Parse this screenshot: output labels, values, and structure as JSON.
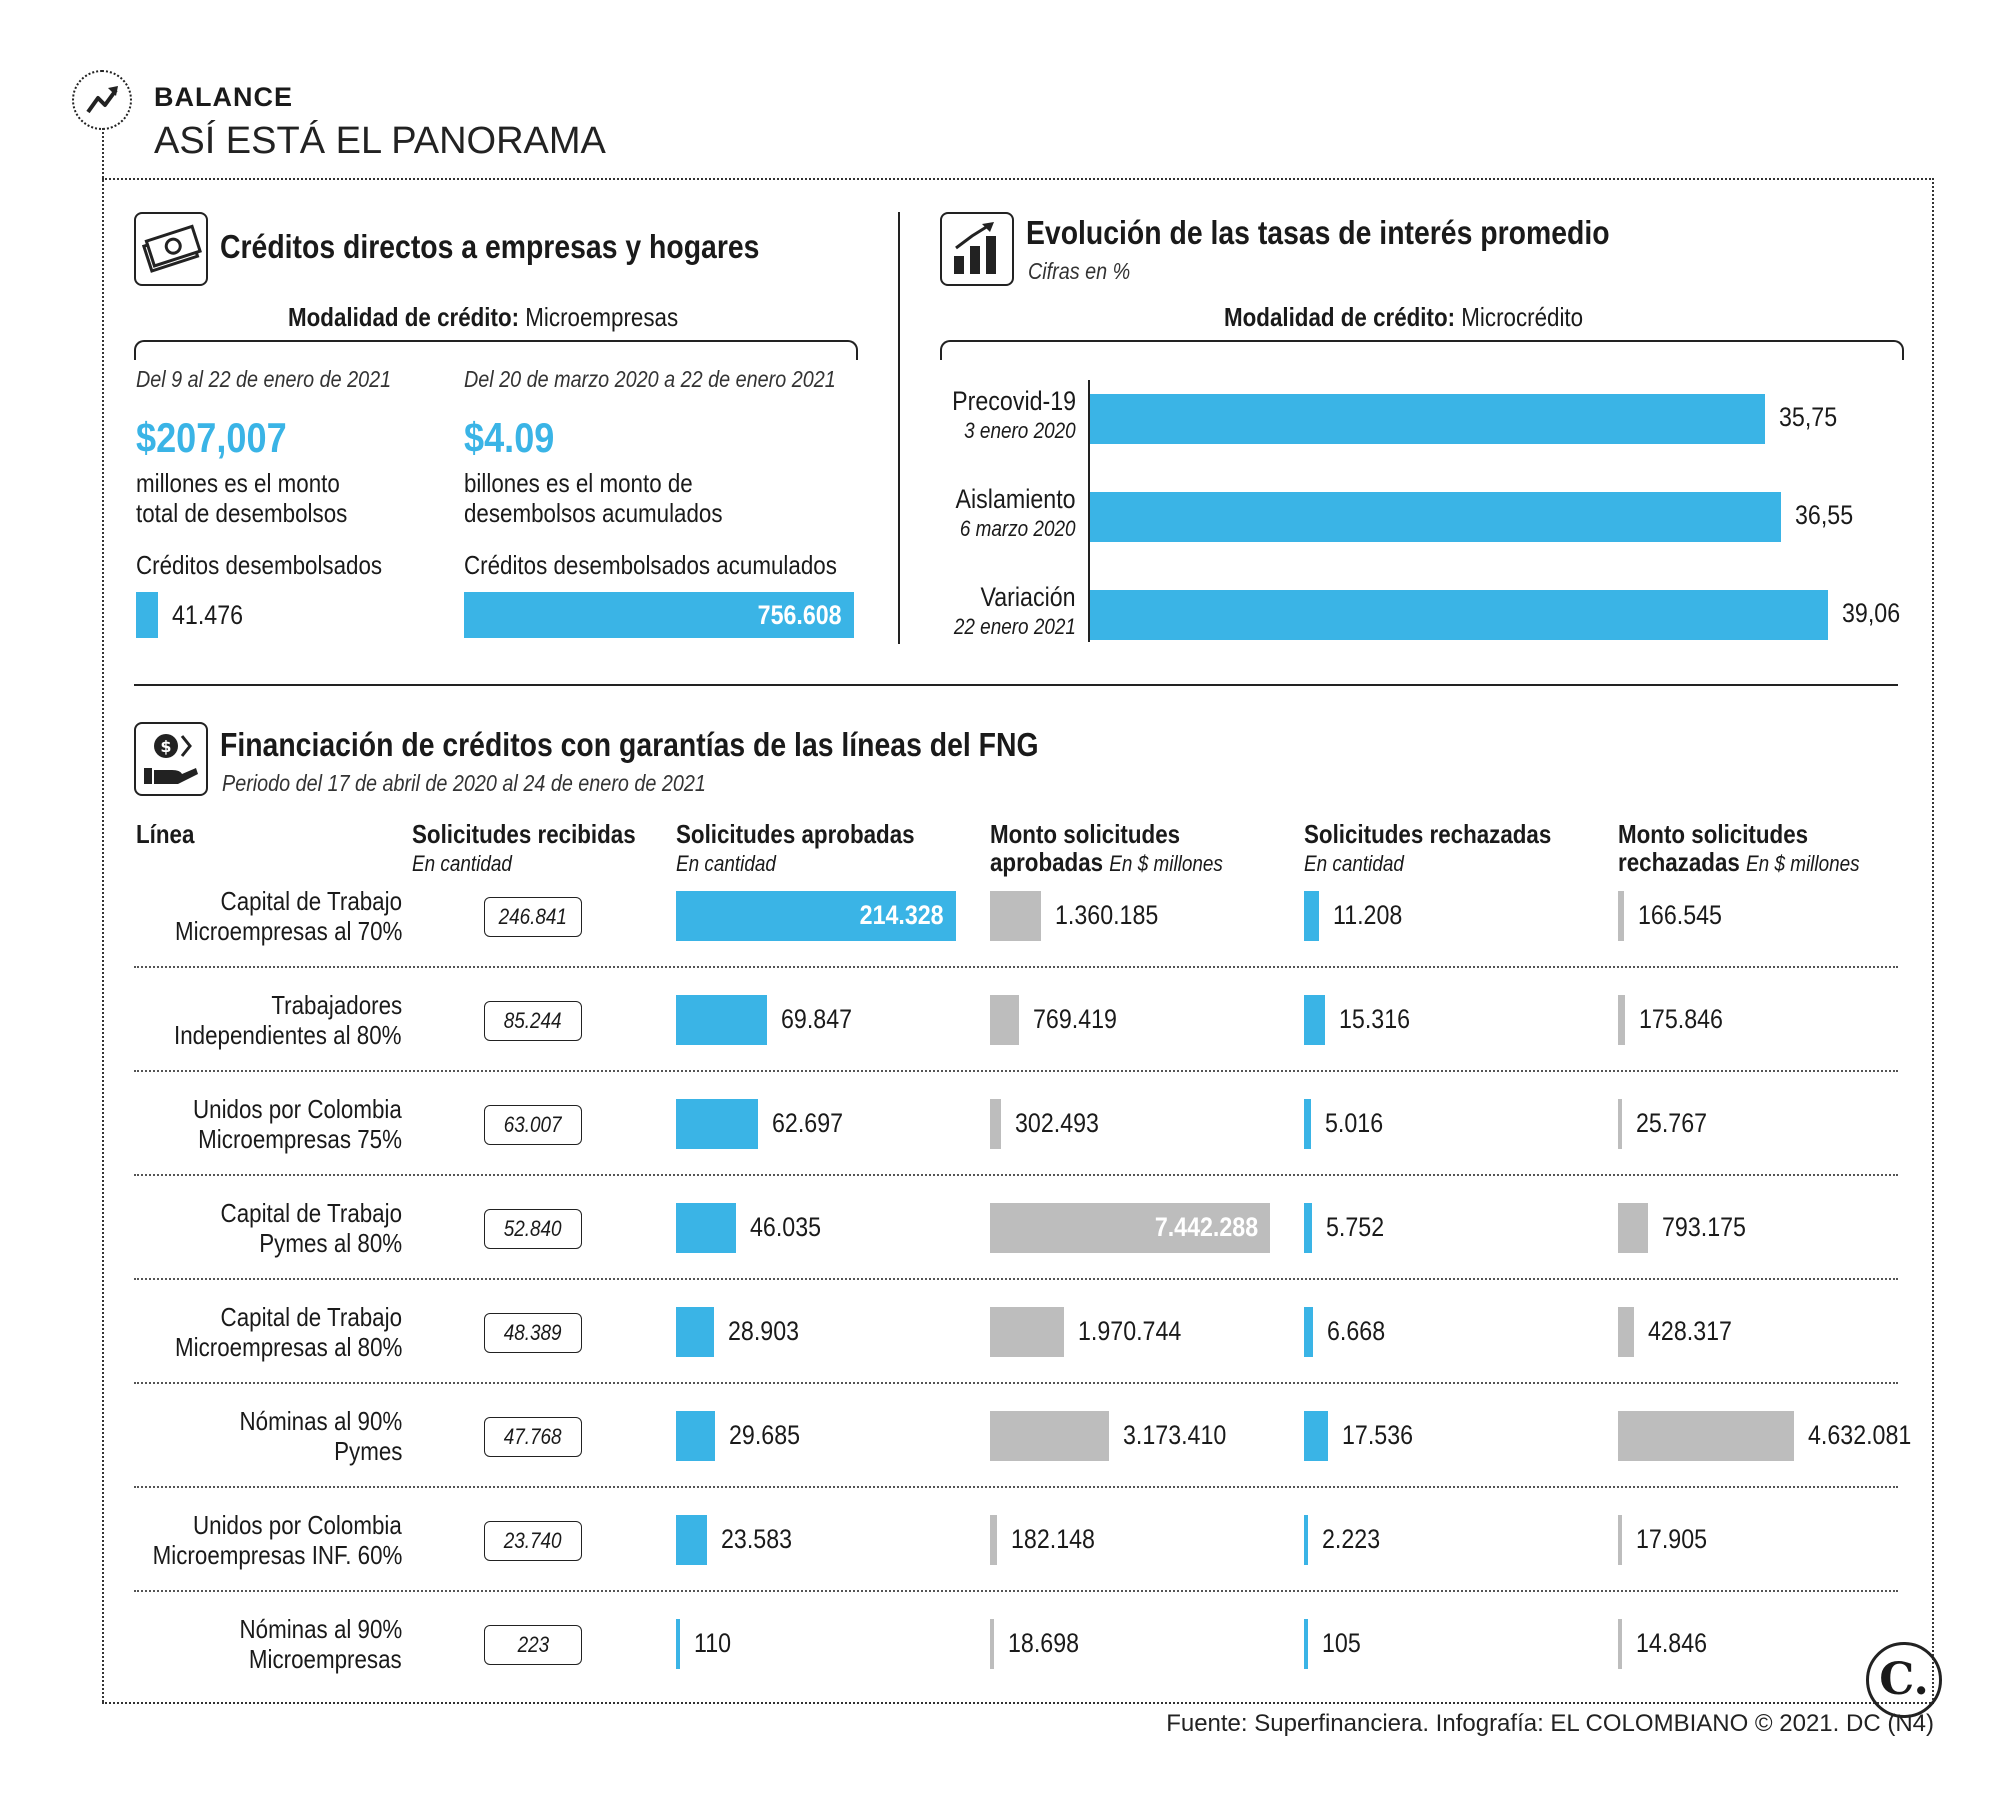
{
  "header": {
    "kicker": "BALANCE",
    "title": "ASÍ ESTÁ EL PANORAMA"
  },
  "section_credits": {
    "title": "Créditos directos a empresas y hogares",
    "modality_label": "Modalidad de crédito:",
    "modality_value": "Microempresas",
    "left": {
      "period": "Del 9 al 22 de enero de 2021",
      "amount": "$207,007",
      "desc_line1": "millones es el monto",
      "desc_line2": "total de desembolsos",
      "credits_label": "Créditos desembolsados",
      "credits_value": "41.476"
    },
    "right": {
      "period": "Del 20 de marzo 2020 a 22 de enero 2021",
      "amount": "$4.09",
      "desc_line1": "billones es el monto de",
      "desc_line2": "desembolsos acumulados",
      "credits_label": "Créditos desembolsados acumulados",
      "credits_value": "756.608"
    }
  },
  "section_rates": {
    "title": "Evolución de las tasas de interés promedio",
    "subtitle": "Cifras en %",
    "modality_label": "Modalidad de crédito:",
    "modality_value": "Microcrédito"
  },
  "section_fng": {
    "title": "Financiación de créditos con garantías de las líneas del FNG",
    "subtitle": "Periodo del 17 de abril de 2020 al 24 de enero de 2021",
    "columns": {
      "linea": "Línea",
      "recibidas": "Solicitudes recibidas",
      "recibidas_sub": "En cantidad",
      "aprobadas": "Solicitudes aprobadas",
      "aprobadas_sub": "En cantidad",
      "monto_aprob_1": "Monto solicitudes",
      "monto_aprob_2": "aprobadas",
      "monto_aprob_sub": "En $ millones",
      "rechazadas": "Solicitudes rechazadas",
      "rechazadas_sub": "En cantidad",
      "monto_rech_1": "Monto solicitudes",
      "monto_rech_2": "rechazadas",
      "monto_rech_sub": "En $ millones"
    }
  },
  "chart_data": [
    {
      "type": "bar",
      "orientation": "horizontal",
      "title": "Evolución de las tasas de interés promedio",
      "subtitle": "Cifras en %",
      "categories": [
        {
          "label": "Precovid-19",
          "date": "3 enero 2020"
        },
        {
          "label": "Aislamiento",
          "date": "6 marzo 2020"
        },
        {
          "label": "Variación",
          "date": "22 enero 2021"
        }
      ],
      "values": [
        35.75,
        36.55,
        39.06
      ],
      "value_labels": [
        "35,75",
        "36,55",
        "39,06"
      ],
      "color": "#3ab4e6"
    },
    {
      "type": "table",
      "title": "Financiación de créditos con garantías de las líneas del FNG",
      "rows": [
        {
          "line1": "Capital de Trabajo",
          "line2": "Microempresas al 70%",
          "recibidas": "246.841",
          "aprobadas": "214.328",
          "monto_aprobadas": "1.360.185",
          "rechazadas": "11.208",
          "monto_rechazadas": "166.545",
          "v_aprob": 214328,
          "v_maprob": 1360185,
          "v_rech": 11208,
          "v_mrech": 166545
        },
        {
          "line1": "Trabajadores",
          "line2": "Independientes al 80%",
          "recibidas": "85.244",
          "aprobadas": "69.847",
          "monto_aprobadas": "769.419",
          "rechazadas": "15.316",
          "monto_rechazadas": "175.846",
          "v_aprob": 69847,
          "v_maprob": 769419,
          "v_rech": 15316,
          "v_mrech": 175846
        },
        {
          "line1": "Unidos por Colombia",
          "line2": "Microempresas 75%",
          "recibidas": "63.007",
          "aprobadas": "62.697",
          "monto_aprobadas": "302.493",
          "rechazadas": "5.016",
          "monto_rechazadas": "25.767",
          "v_aprob": 62697,
          "v_maprob": 302493,
          "v_rech": 5016,
          "v_mrech": 25767
        },
        {
          "line1": "Capital de Trabajo",
          "line2": "Pymes al 80%",
          "recibidas": "52.840",
          "aprobadas": "46.035",
          "monto_aprobadas": "7.442.288",
          "rechazadas": "5.752",
          "monto_rechazadas": "793.175",
          "v_aprob": 46035,
          "v_maprob": 7442288,
          "v_rech": 5752,
          "v_mrech": 793175
        },
        {
          "line1": "Capital de Trabajo",
          "line2": "Microempresas al 80%",
          "recibidas": "48.389",
          "aprobadas": "28.903",
          "monto_aprobadas": "1.970.744",
          "rechazadas": "6.668",
          "monto_rechazadas": "428.317",
          "v_aprob": 28903,
          "v_maprob": 1970744,
          "v_rech": 6668,
          "v_mrech": 428317
        },
        {
          "line1": "Nóminas al 90%",
          "line2": "Pymes",
          "recibidas": "47.768",
          "aprobadas": "29.685",
          "monto_aprobadas": "3.173.410",
          "rechazadas": "17.536",
          "monto_rechazadas": "4.632.081",
          "v_aprob": 29685,
          "v_maprob": 3173410,
          "v_rech": 17536,
          "v_mrech": 4632081
        },
        {
          "line1": "Unidos por Colombia",
          "line2": "Microempresas INF. 60%",
          "recibidas": "23.740",
          "aprobadas": "23.583",
          "monto_aprobadas": "182.148",
          "rechazadas": "2.223",
          "monto_rechazadas": "17.905",
          "v_aprob": 23583,
          "v_maprob": 182148,
          "v_rech": 2223,
          "v_mrech": 17905
        },
        {
          "line1": "Nóminas al 90%",
          "line2": "Microempresas",
          "recibidas": "223",
          "aprobadas": "110",
          "monto_aprobadas": "18.698",
          "rechazadas": "105",
          "monto_rechazadas": "14.846",
          "v_aprob": 110,
          "v_maprob": 18698,
          "v_rech": 105,
          "v_mrech": 14846
        }
      ]
    }
  ],
  "colors": {
    "accent": "#3ab4e6",
    "gray": "#bdbdbd"
  },
  "footer": {
    "source": "Fuente: Superfinanciera. Infografía: EL COLOMBIANO © 2021. DC (N4)",
    "logo": "C."
  }
}
